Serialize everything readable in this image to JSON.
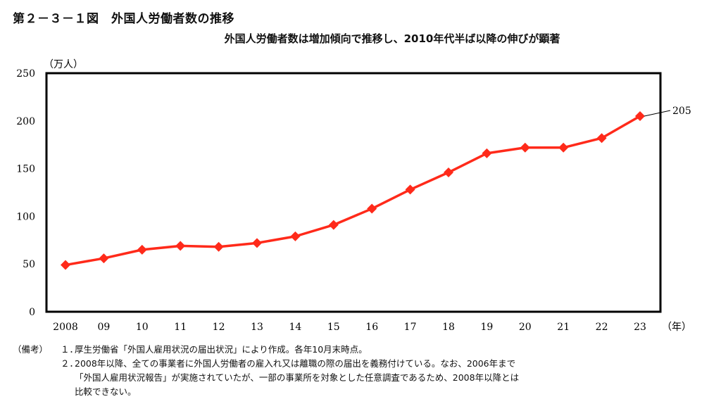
{
  "figure": {
    "title": "第２－３－１図　外国人労働者数の推移",
    "subtitle": "外国人労働者数は増加傾向で推移し、2010年代半ば以降の伸びが顕著"
  },
  "chart_data": {
    "type": "line",
    "x": [
      "2008",
      "09",
      "10",
      "11",
      "12",
      "13",
      "14",
      "15",
      "16",
      "17",
      "18",
      "19",
      "20",
      "21",
      "22",
      "23"
    ],
    "values": [
      49,
      56,
      65,
      69,
      68,
      72,
      79,
      91,
      108,
      128,
      146,
      166,
      172,
      172,
      182,
      205
    ],
    "y_unit_label": "（万人）",
    "x_unit_label": "（年）",
    "ylim": [
      0,
      250
    ],
    "yticks": [
      0,
      50,
      100,
      150,
      200,
      250
    ],
    "end_label": "205",
    "grid": false,
    "line_color": "#ff2a1a",
    "marker": "diamond"
  },
  "notes": {
    "head": "（備考）",
    "items": [
      {
        "num": "１．",
        "text": "厚生労働省「外国人雇用状況の届出状況」により作成。各年10月末時点。"
      },
      {
        "num": "２．",
        "text": "2008年以降、全ての事業者に外国人労働者の雇入れ又は離職の際の届出を義務付けている。なお、2006年まで"
      }
    ],
    "continuation": [
      "「外国人雇用状況報告」が実施されていたが、一部の事業所を対象とした任意調査であるため、2008年以降とは",
      "比較できない。"
    ]
  }
}
